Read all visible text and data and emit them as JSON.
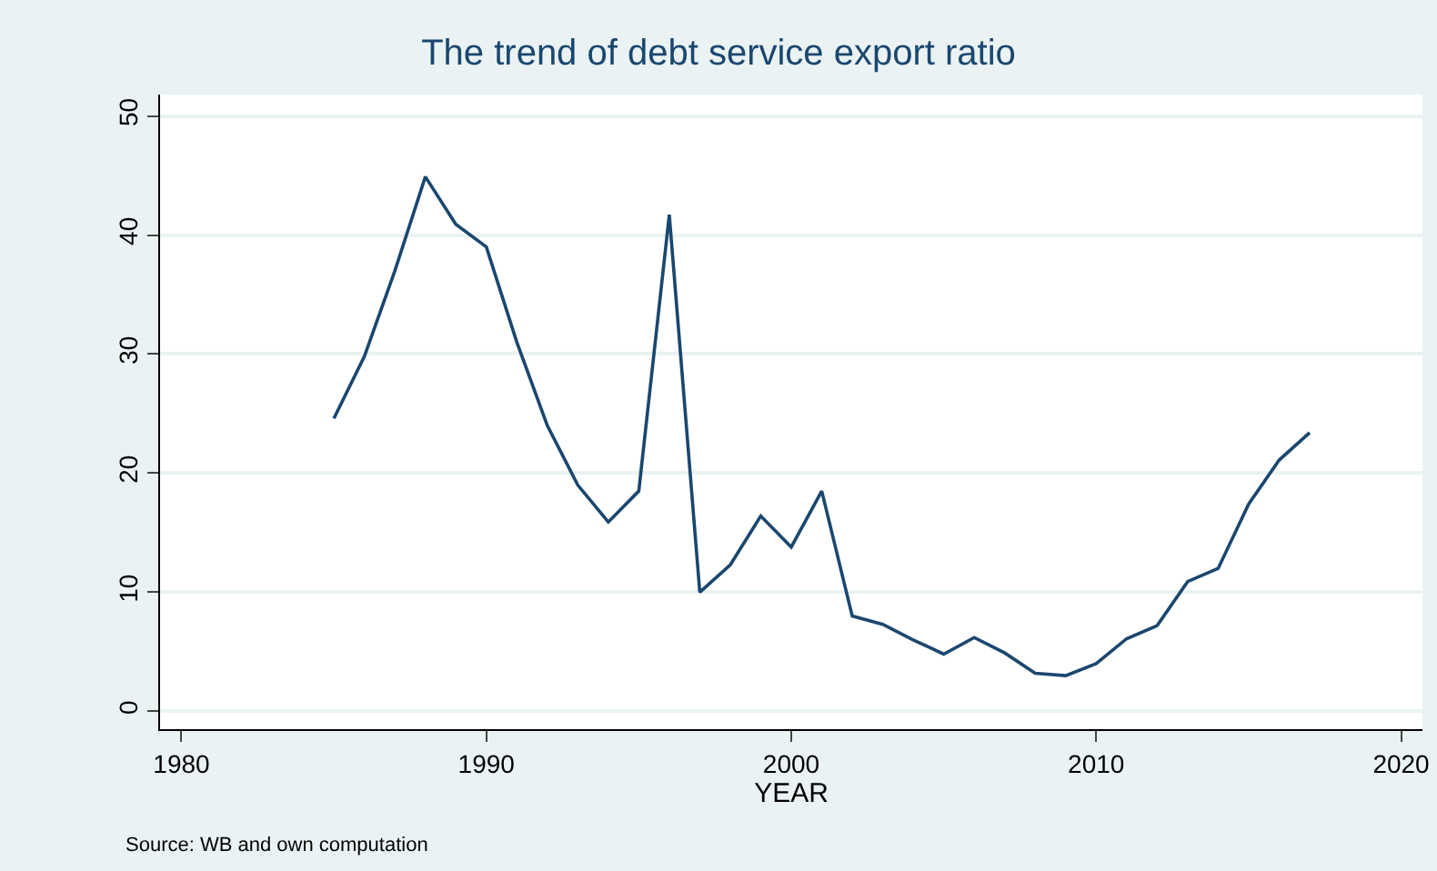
{
  "chart_data": {
    "type": "line",
    "title": "The trend of debt service export ratio",
    "xlabel": "YEAR",
    "x": [
      1985,
      1986,
      1987,
      1988,
      1989,
      1990,
      1991,
      1992,
      1993,
      1994,
      1995,
      1996,
      1997,
      1998,
      1999,
      2000,
      2001,
      2002,
      2003,
      2004,
      2005,
      2006,
      2007,
      2008,
      2009,
      2010,
      2011,
      2012,
      2013,
      2014,
      2015,
      2016,
      2017
    ],
    "series": [
      {
        "color": "#1a476f",
        "values": [
          24.6,
          29.8,
          37,
          44.9,
          40.9,
          39,
          31,
          24,
          19,
          15.9,
          18.5,
          41.7,
          10,
          12.3,
          16.4,
          13.8,
          18.5,
          8,
          7.3,
          6,
          4.8,
          6.2,
          4.9,
          3.2,
          3,
          4,
          6.1,
          7.2,
          10.9,
          12,
          17.4,
          21.1,
          23.4
        ]
      }
    ],
    "xlim": [
      1979.3,
      2020.7
    ],
    "ylim": [
      -1.5,
      51.8
    ],
    "xticks": [
      1980,
      1990,
      2000,
      2010,
      2020
    ],
    "yticks": [
      0,
      10,
      20,
      30,
      40,
      50
    ],
    "grid": "y",
    "marker": "none",
    "line_style": "solid",
    "annotations": [
      "Source: WB and own computation"
    ]
  }
}
